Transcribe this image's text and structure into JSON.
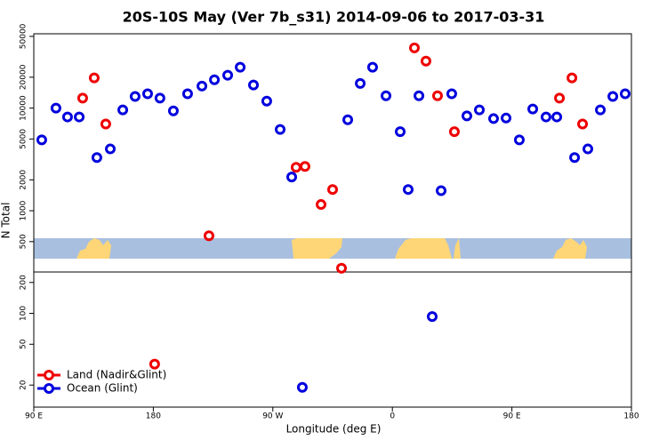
{
  "chart_data": {
    "type": "scatter",
    "title": "20S-10S May (Ver 7b_s31)   2014-09-06 to 2017-03-31",
    "x_label": "Longitude (deg E)",
    "y_label": "N Total",
    "log_scale_y": true,
    "legend_position": "bottom-left",
    "xlim": [
      90,
      540
    ],
    "ylim": [
      12.2,
      53000
    ],
    "xticks": [
      {
        "value": 90,
        "label": "90 E"
      },
      {
        "value": 180,
        "label": "180"
      },
      {
        "value": 270,
        "label": "90 W"
      },
      {
        "value": 360,
        "label": "0"
      },
      {
        "value": 450,
        "label": "90 E"
      },
      {
        "value": 540,
        "label": "180"
      }
    ],
    "yticks": [
      20,
      50,
      100,
      200,
      500,
      1000,
      2000,
      5000,
      10000,
      20000,
      50000
    ],
    "series": [
      {
        "name": "Land (Nadir&Glint)",
        "color": "#ee0000",
        "x": [
          126.8,
          135.5,
          144.2,
          181,
          221.9,
          287.5,
          294.2,
          306.3,
          315,
          321.7,
          376.6,
          385.3,
          394,
          406.7,
          485.8,
          495.2,
          503.2
        ],
        "values": [
          12500,
          19700,
          7000,
          32,
          570,
          2650,
          2700,
          1150,
          1610,
          275,
          38600,
          28700,
          13200,
          5900,
          12500,
          19700,
          7000
        ]
      },
      {
        "name": "Ocean (Glint)",
        "color": "#0000dd",
        "x": [
          96,
          106.7,
          115.4,
          124.2,
          137.5,
          147.6,
          157,
          166.3,
          175.7,
          185,
          195.1,
          205.8,
          216.6,
          226,
          236,
          245.4,
          255.4,
          265.4,
          275.5,
          284.2,
          292.2,
          326.4,
          335.8,
          345.1,
          355.2,
          365.9,
          371.9,
          380,
          390,
          396.7,
          404.7,
          416.1,
          425.5,
          436.2,
          445.6,
          455.6,
          465.7,
          475.7,
          483.8,
          497.2,
          507.2,
          516.6,
          526,
          535.3
        ],
        "values": [
          4900,
          10000,
          8200,
          8200,
          3300,
          4000,
          9600,
          13000,
          13800,
          12500,
          9400,
          13800,
          16400,
          18900,
          20900,
          25000,
          16800,
          11700,
          6200,
          2130,
          19,
          7700,
          17400,
          25000,
          13200,
          5900,
          1610,
          13200,
          93,
          1570,
          13800,
          8400,
          9600,
          7900,
          8000,
          4900,
          9800,
          8200,
          8200,
          3300,
          4000,
          9600,
          13000,
          13800
        ]
      }
    ]
  }
}
